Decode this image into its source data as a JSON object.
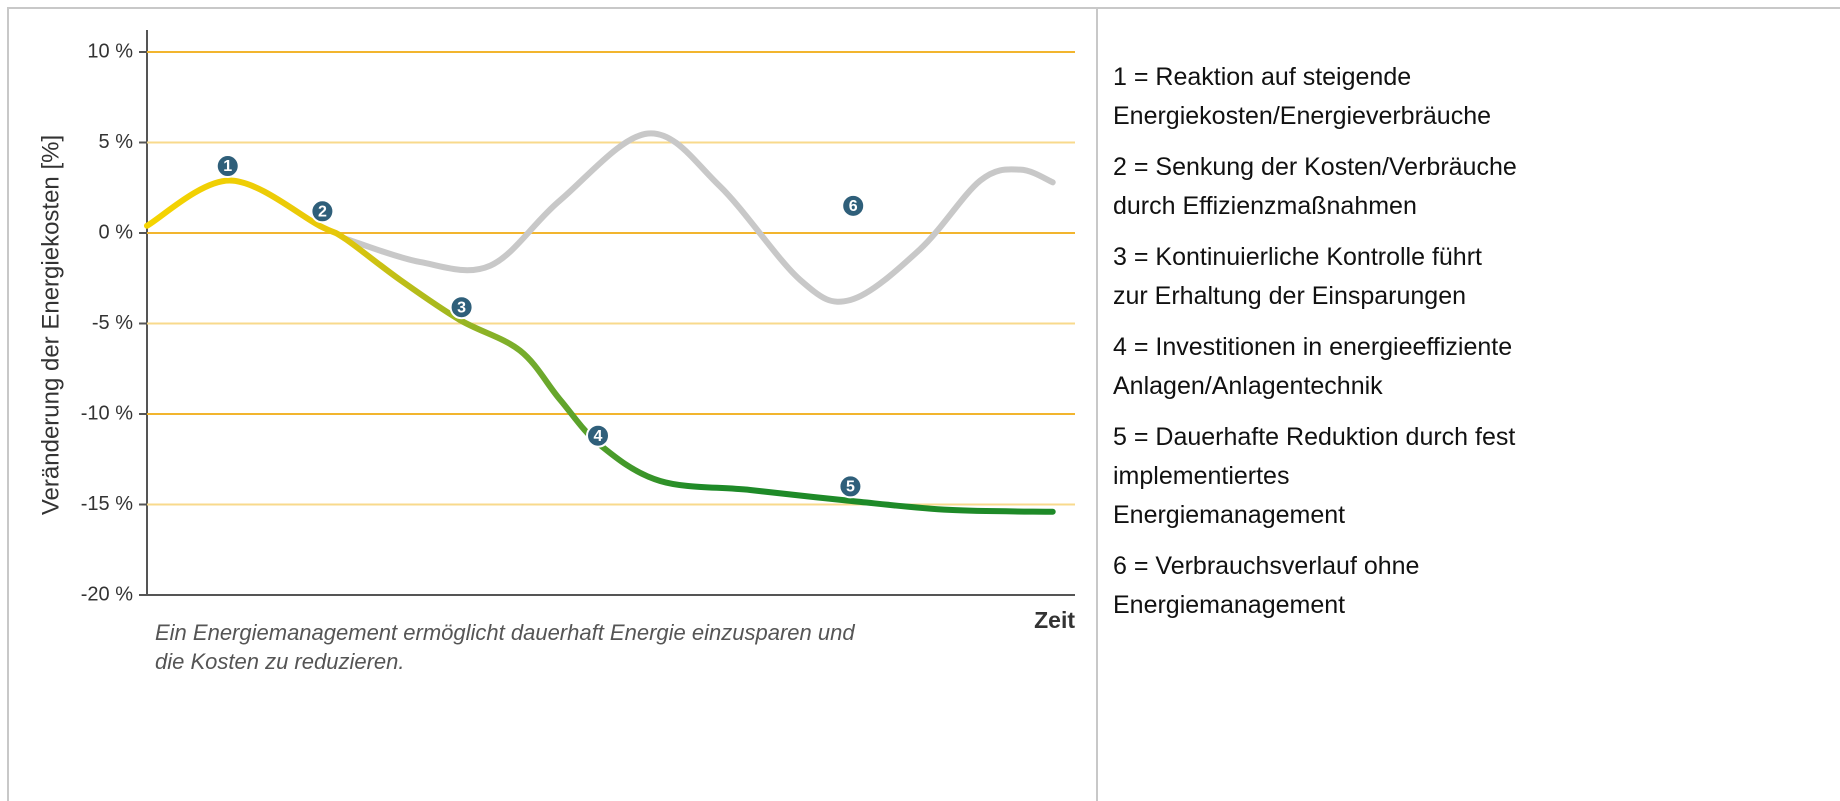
{
  "chart_data": {
    "type": "line",
    "ylabel": "Veränderung der Energiekosten [%]",
    "xlabel": "Zeit",
    "caption": [
      "Ein Energiemanagement ermöglicht dauerhaft Energie einzusparen und",
      "die Kosten zu reduzieren."
    ],
    "xlim": [
      0,
      100
    ],
    "ylim": [
      -20,
      10
    ],
    "yticks": [
      {
        "value": 10,
        "label": "10 %"
      },
      {
        "value": 5,
        "label": "5 %"
      },
      {
        "value": 0,
        "label": "0 %"
      },
      {
        "value": -5,
        "label": "-5 %"
      },
      {
        "value": -10,
        "label": "-10 %"
      },
      {
        "value": -15,
        "label": "-15 %"
      },
      {
        "value": -20,
        "label": "-20 %"
      }
    ],
    "grid": true,
    "grid_colors": [
      "#f2b52e",
      "#f8da8c"
    ],
    "series": [
      {
        "color": "#1e8a28",
        "gradient": [
          "#f5d400",
          "#e8c80a",
          "#7aae2c",
          "#1e8a28"
        ],
        "x": [
          0,
          8.9,
          18.6,
          21.3,
          27.3,
          33.7,
          40.2,
          44.5,
          48.8,
          55.3,
          65,
          75.8,
          86.5,
          97.6
        ],
        "values": [
          0.4,
          2.9,
          0.4,
          -0.3,
          -2.6,
          -4.8,
          -6.5,
          -9.2,
          -11.7,
          -13.7,
          -14.2,
          -14.8,
          -15.3,
          -15.4
        ]
      },
      {
        "color": "#c8c8c8",
        "x": [
          21.3,
          29.4,
          37,
          44.5,
          54,
          61.7,
          70.4,
          75.8,
          83.3,
          89.8,
          94.1,
          97.6
        ],
        "values": [
          -0.3,
          -1.6,
          -1.8,
          1.8,
          5.5,
          2.6,
          -2.6,
          -3.7,
          -0.9,
          2.9,
          3.5,
          2.8
        ]
      }
    ],
    "annotations": [
      {
        "text": "1",
        "x": 8.7,
        "y": 3.7
      },
      {
        "text": "2",
        "x": 18.9,
        "y": 1.2
      },
      {
        "text": "3",
        "x": 33.9,
        "y": -4.1
      },
      {
        "text": "4",
        "x": 48.6,
        "y": -11.2
      },
      {
        "text": "5",
        "x": 75.8,
        "y": -14.0
      },
      {
        "text": "6",
        "x": 76.1,
        "y": 1.5
      }
    ],
    "marker_color": "#2f5f7a",
    "legend_items": [
      [
        "1 = Reaktion auf steigende",
        "Energiekosten/Energieverbräuche"
      ],
      [
        "2 = Senkung der Kosten/Verbräuche",
        "durch Effizienzmaßnahmen"
      ],
      [
        "3 = Kontinuierliche Kontrolle führt",
        "zur Erhaltung der Einsparungen"
      ],
      [
        "4 = Investitionen in energieeffiziente",
        "Anlagen/Anlagentechnik"
      ],
      [
        "5 = Dauerhafte Reduktion durch fest",
        "implementiertes",
        "Energiemanagement"
      ],
      [
        "6 = Verbrauchsverlauf ohne",
        "Energiemanagement"
      ]
    ]
  }
}
